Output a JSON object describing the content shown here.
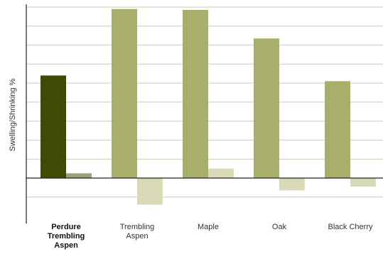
{
  "chart_data": {
    "type": "bar",
    "title": "",
    "xlabel": "",
    "ylabel": "Swelling/Shrinking %",
    "categories": [
      [
        "Perdure",
        "Trembling",
        "Aspen"
      ],
      [
        "Trembling",
        "Aspen"
      ],
      [
        "Maple"
      ],
      [
        "Oak"
      ],
      [
        "Black Cherry"
      ]
    ],
    "category_bold": [
      true,
      false,
      false,
      false,
      false
    ],
    "series": [
      {
        "values": [
          5.4,
          8.9,
          8.85,
          7.35,
          5.1
        ],
        "colors": [
          "#3f4b05",
          "#a8af6b",
          "#a8af6b",
          "#a8af6b",
          "#a8af6b"
        ]
      },
      {
        "values": [
          0.25,
          -1.4,
          0.5,
          -0.65,
          -0.45
        ],
        "colors": [
          "#9aa07a",
          "#d8dab8",
          "#d8dab8",
          "#d8dab8",
          "#d8dab8"
        ]
      }
    ],
    "ylim": [
      -1.95,
      9.0
    ],
    "y_tick_step": 1.0,
    "grid": true,
    "gridline_color": "#c9ccb2",
    "legend": "none"
  }
}
